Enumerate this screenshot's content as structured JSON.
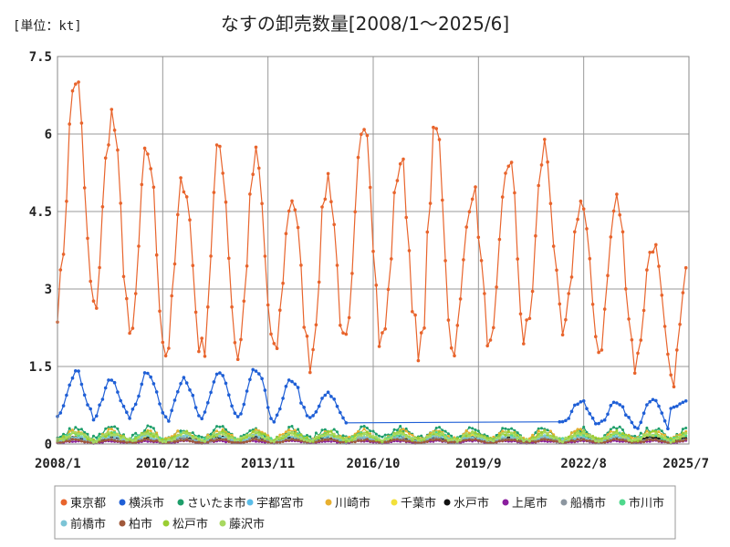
{
  "chart_data": {
    "type": "line",
    "title": "なすの卸売数量[2008/1～2025/6]",
    "unit_label": "[単位：kt]",
    "xlabel": "",
    "ylabel": "",
    "x_range": [
      "2008-01",
      "2025-07"
    ],
    "ylim": [
      0,
      7.5
    ],
    "y_ticks": [
      "0",
      "1.5",
      "3",
      "4.5",
      "6",
      "7.5"
    ],
    "x_ticks": [
      "2008/1",
      "2010/12",
      "2013/11",
      "2016/10",
      "2019/9",
      "2022/8",
      "2025/7"
    ],
    "grid": true,
    "legend_position": "bottom",
    "series": [
      {
        "name": "東京都",
        "color": "#E8642C",
        "peaks": [
          7.1,
          6.35,
          5.7,
          5.15,
          5.75,
          5.5,
          4.8,
          5.15,
          6.5,
          5.5,
          6.05,
          4.95,
          5.55,
          5.75,
          4.7,
          4.7,
          3.9,
          3.4
        ],
        "troughs": [
          2.75,
          2.55,
          1.85,
          1.75,
          1.75,
          1.75,
          1.7,
          1.65,
          1.8,
          2.0,
          1.5,
          1.95,
          1.75,
          2.15,
          2.05,
          1.8,
          1.5,
          1.15,
          3.2
        ]
      },
      {
        "name": "横浜市",
        "color": "#1F5FD6",
        "peaks": [
          1.4,
          1.25,
          1.42,
          1.3,
          1.4,
          1.42,
          1.25,
          0.97
        ],
        "troughs": [
          0.6,
          0.5,
          0.55,
          0.45,
          0.5,
          0.5,
          0.45,
          0.5,
          0.4
        ],
        "late_peaks": [
          0.85,
          0.83,
          0.82,
          0.85
        ],
        "late_troughs": [
          0.42,
          0.4,
          0.38,
          0.3,
          0.7
        ],
        "gap": [
          "2016-01",
          "2021-12"
        ]
      },
      {
        "name": "さいたま市",
        "color": "#1E9E6A",
        "level": 0.3
      },
      {
        "name": "宇都宮市",
        "color": "#5BBDE8",
        "level": 0.12
      },
      {
        "name": "川崎市",
        "color": "#E8B030",
        "level": 0.25
      },
      {
        "name": "千葉市",
        "color": "#F2E03A",
        "level": 0.15
      },
      {
        "name": "水戸市",
        "color": "#111111",
        "level": 0.12
      },
      {
        "name": "上尾市",
        "color": "#8A1E9E",
        "level": 0.06
      },
      {
        "name": "船橋市",
        "color": "#8C96A0",
        "level": 0.1
      },
      {
        "name": "市川市",
        "color": "#4FD88C",
        "level": 0.2
      },
      {
        "name": "前橋市",
        "color": "#7CC4D6",
        "level": 0.15
      },
      {
        "name": "柏市",
        "color": "#A0583A",
        "level": 0.08
      },
      {
        "name": "松戸市",
        "color": "#9ACD32",
        "level": 0.22
      },
      {
        "name": "藤沢市",
        "color": "#A8D860",
        "level": 0.2
      }
    ]
  }
}
